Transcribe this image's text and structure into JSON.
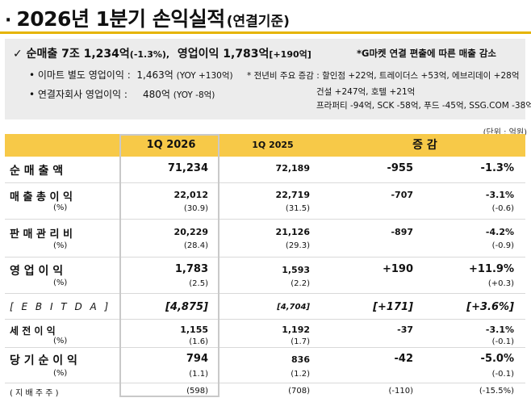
{
  "header": {
    "bullet": "·",
    "title": "2026년 1분기 손익실적",
    "title_suffix": "(연결기준)"
  },
  "summary": {
    "check": "✓",
    "sales_label": "순매출 7조 1,234억",
    "sales_change": "(-1.3%),",
    "op_label": "영업이익 1,783억",
    "op_change": "[+190억]",
    "note": "*G마켓 연결 편출에 따른 매출 감소",
    "emart_label": "• 이마트 별도 영업이익 :",
    "emart_value": "1,463억",
    "emart_yoy": "(YOY +130억)",
    "sub_label": "• 연결자회사 영업이익 :",
    "sub_value": "480억",
    "sub_yoy": "(YOY   -8억)",
    "note_line1": "* 전년비 주요 증감 : 할인점 +22억, 트레이더스 +53억, 에브리데이 +28억",
    "note_line2": "건설 +247억, 호텔 +21억",
    "note_line3": "프라퍼티 -94억, SCK -58억, 푸드 -45억, SSG.COM -38억"
  },
  "unit": "(단위 : 억원)",
  "table": {
    "headers": [
      "1Q  2026",
      "1Q  2025",
      "증   감"
    ],
    "rows": [
      {
        "label": "순   매   출   액",
        "v1": "71,234",
        "v2": "72,189",
        "v3": "-955",
        "v4": "-1.3%"
      },
      {
        "label": "매 출 총 이 익",
        "v1": "22,012",
        "v2": "22,719",
        "v3": "-707",
        "v4": "-3.1%"
      },
      {
        "label": "(%)",
        "v1": "(30.9)",
        "v2": "(31.5)",
        "v3": "",
        "v4": "(-0.6)"
      },
      {
        "label": "판 매 관 리 비",
        "v1": "20,229",
        "v2": "21,126",
        "v3": "-897",
        "v4": "-4.2%"
      },
      {
        "label": "(%)",
        "v1": "(28.4)",
        "v2": "(29.3)",
        "v3": "",
        "v4": "(-0.9)"
      },
      {
        "label": "영    업    이    익",
        "v1": "1,783",
        "v2": "1,593",
        "v3": "+190",
        "v4": "+11.9%"
      },
      {
        "label": "(%)",
        "v1": "(2.5)",
        "v2": "(2.2)",
        "v3": "",
        "v4": "(+0.3)"
      },
      {
        "label": "[ E B I T D A ]",
        "v1": "[4,875]",
        "v2": "[4,704]",
        "v3": "[+171]",
        "v4": "[+3.6%]"
      },
      {
        "label": "세      전      이      익",
        "v1": "1,155",
        "v2": "1,192",
        "v3": "-37",
        "v4": "-3.1%"
      },
      {
        "label": "(%)",
        "v1": "(1.6)",
        "v2": "(1.7)",
        "v3": "",
        "v4": "(-0.1)"
      },
      {
        "label": "당 기 순 이 익",
        "v1": "794",
        "v2": "836",
        "v3": "-42",
        "v4": "-5.0%"
      },
      {
        "label": "(%)",
        "v1": "(1.1)",
        "v2": "(1.2)",
        "v3": "",
        "v4": "(-0.1)"
      },
      {
        "label": "(    지    배    주    주    )",
        "v1": "(598)",
        "v2": "(708)",
        "v3": "(-110)",
        "v4": "(-15.5%)"
      }
    ]
  },
  "colors": {
    "accent": "#f7c948",
    "title_bar": "#e6b400",
    "summary_bg": "#ececec"
  }
}
